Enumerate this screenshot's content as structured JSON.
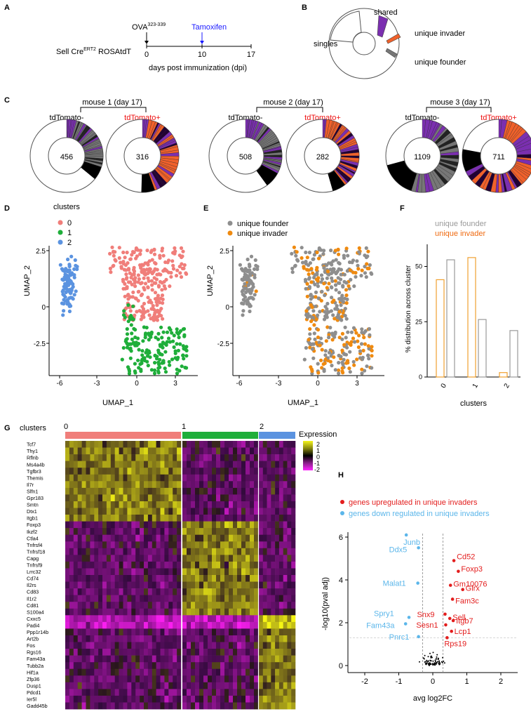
{
  "panels": {
    "A": "A",
    "B": "B",
    "C": "C",
    "D": "D",
    "E": "E",
    "F": "F",
    "G": "G",
    "H": "H"
  },
  "panelA": {
    "strain_main": "Sell Cre",
    "strain_sup": "ERT2",
    "strain_suffix": " ROSAtdT",
    "ova_main": "OVA",
    "ova_sup": "323-339",
    "tamoxifen": "Tamoxifen",
    "tamoxifen_color": "#1a1aff",
    "ticks": [
      "0",
      "10",
      "17"
    ],
    "xlabel": "days post immunization (dpi)"
  },
  "panelB": {
    "shared": "shared",
    "singles": "singles",
    "invader": "unique invader",
    "founder": "unique founder",
    "colors": {
      "shared": "#7b2fb0",
      "invader": "#f0612b",
      "founder": "#777777"
    }
  },
  "panelC": {
    "mice": [
      {
        "title": "mouse 1 (day 17)",
        "neg_label": "tdTomato-",
        "pos_label": "tdTomato+",
        "neg_count": "456",
        "pos_count": "316"
      },
      {
        "title": "mouse 2 (day 17)",
        "neg_label": "tdTomato-",
        "pos_label": "tdTomato+",
        "neg_count": "508",
        "pos_count": "282"
      },
      {
        "title": "mouse 3 (day 17)",
        "neg_label": "tdTomato-",
        "pos_label": "tdTomato+",
        "neg_count": "1109",
        "pos_count": "711"
      }
    ],
    "pos_color": "#ee1111"
  },
  "panelD": {
    "legend_title": "clusters",
    "legend": [
      "0",
      "1",
      "2"
    ],
    "colors": [
      "#f07e7a",
      "#1fae3a",
      "#5b93e0"
    ],
    "xlabel": "UMAP_1",
    "ylabel": "UMAP_2",
    "xticks": [
      "-6",
      "-3",
      "0",
      "3"
    ],
    "yticks": [
      "2.5",
      "0",
      "-2.5"
    ]
  },
  "panelE": {
    "legend": [
      "unique founder",
      "unique invader"
    ],
    "colors": [
      "#8e8e8e",
      "#ef8a10"
    ],
    "xlabel": "UMAP_1",
    "ylabel": "UMAP_2",
    "xticks": [
      "-6",
      "-3",
      "0",
      "3"
    ],
    "yticks": [
      "2.5",
      "0",
      "-2.5"
    ]
  },
  "panelF": {
    "legend_founder": "unique founder",
    "legend_invader": "unique invader",
    "ylabel": "% distribution across cluster",
    "xlabel": "clusters",
    "yticks": [
      "0",
      "25",
      "50"
    ],
    "chart_data": {
      "type": "bar",
      "categories": [
        "0",
        "1",
        "2"
      ],
      "series": [
        {
          "name": "unique invader",
          "values": [
            44,
            54,
            2
          ],
          "color": "#f0a030"
        },
        {
          "name": "unique founder",
          "values": [
            53,
            26,
            21
          ],
          "color": "#999999"
        }
      ],
      "ylim": [
        0,
        60
      ],
      "xlabel": "clusters",
      "ylabel": "% distribution across cluster"
    }
  },
  "panelG": {
    "clusters_label": "clusters",
    "cluster_names": [
      "0",
      "1",
      "2"
    ],
    "cluster_colors": [
      "#f07e7a",
      "#1fae3a",
      "#5b93e0"
    ],
    "legend_title": "Expression",
    "legend_ticks": [
      "2",
      "1",
      "0",
      "-1",
      "-2"
    ],
    "genes": [
      "Tcf7",
      "Thy1",
      "Rflnb",
      "Ms4a4b",
      "Tgfbr3",
      "Themis",
      "Il7r",
      "Slfn1",
      "Gpr183",
      "Smtn",
      "Dtx1",
      "Itgb1",
      "Foxp3",
      "Ikzf2",
      "Ctla4",
      "Tnfrsf4",
      "Tnfrsf18",
      "Capg",
      "Tnfrsf9",
      "Lrrc32",
      "Cd74",
      "Il2rs",
      "Cd83",
      "Il1r2",
      "Cd81",
      "S100a4",
      "Cxxc5",
      "Padi4",
      "Ppp1r14b",
      "Art2b",
      "Fos",
      "Rgs16",
      "Fam43a",
      "Tubb2a",
      "Hif1a",
      "Zfp36",
      "Dusp1",
      "Pdcd1",
      "Ier5l",
      "Gadd45b"
    ]
  },
  "panelH": {
    "legend_up": "genes upregulated in unique invaders",
    "legend_down": "genes down regulated in unique invaders",
    "up_color": "#e31d1d",
    "down_color": "#5bb6ea",
    "xlabel": "avg log2FC",
    "ylabel": "-log10(pval adj)",
    "xticks": [
      "-2",
      "-1",
      "0",
      "1",
      "2"
    ],
    "yticks": [
      "0",
      "2",
      "4",
      "6"
    ],
    "chart_data": {
      "type": "scatter",
      "xlim": [
        -2.2,
        2.2
      ],
      "ylim": [
        -0.3,
        6.4
      ],
      "up": [
        {
          "label": "Cd52",
          "x": 0.62,
          "y": 4.9
        },
        {
          "label": "Foxp3",
          "x": 0.75,
          "y": 4.4
        },
        {
          "label": "Gm10076",
          "x": 0.52,
          "y": 3.75
        },
        {
          "label": "Glrx",
          "x": 0.88,
          "y": 3.55
        },
        {
          "label": "Fam3c",
          "x": 0.58,
          "y": 3.1
        },
        {
          "label": "Snx9",
          "x": 0.36,
          "y": 2.4
        },
        {
          "label": "Sell",
          "x": 0.5,
          "y": 2.2
        },
        {
          "label": "Itgb7",
          "x": 0.6,
          "y": 2.1
        },
        {
          "label": "Sesn1",
          "x": 0.38,
          "y": 1.9
        },
        {
          "label": "Lcp1",
          "x": 0.55,
          "y": 1.6
        },
        {
          "label": "Rps19",
          "x": 0.42,
          "y": 1.3
        }
      ],
      "down": [
        {
          "label": "Junb",
          "x": -0.78,
          "y": 6.1
        },
        {
          "label": "Ddx5",
          "x": -0.42,
          "y": 5.5
        },
        {
          "label": "Malat1",
          "x": -0.44,
          "y": 3.85
        },
        {
          "label": "Spry1",
          "x": -0.7,
          "y": 2.25
        },
        {
          "label": "Fam43a",
          "x": -0.8,
          "y": 1.95
        },
        {
          "label": "Pnrc1",
          "x": -0.42,
          "y": 1.35
        }
      ],
      "vlines": [
        -0.3,
        0.3
      ],
      "hline": 1.3
    }
  }
}
